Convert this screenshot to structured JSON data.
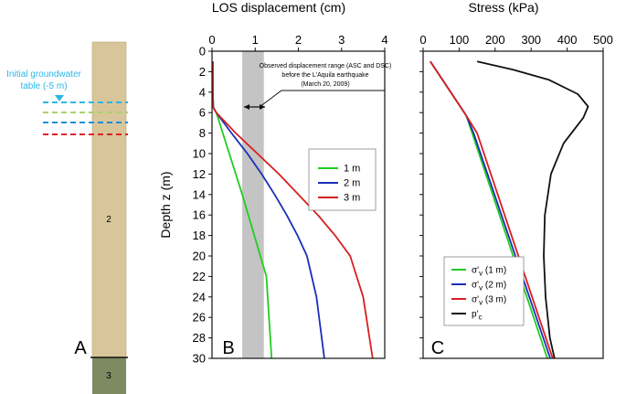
{
  "panel_a": {
    "label": "A",
    "groundwater_label_line1": "Initial groundwater",
    "groundwater_label_line2": "table (-5 m)",
    "layer_2_label": "2",
    "layer_3_label": "3",
    "line_colors": [
      "#2bb6e6",
      "#a8d26a",
      "#1a8fd8",
      "#e0202a"
    ],
    "column_color": "#d8c59a",
    "layer3_color": "#7d8a62"
  },
  "annotation": {
    "line1": "Observed displacement range (ASC and DSC)",
    "line2": "before the L'Aquila earthquake",
    "line3": "(March 20, 2009)"
  },
  "chart_data": [
    {
      "type": "line",
      "panel_label": "B",
      "title": "LOS displacement (cm)",
      "xlabel": "LOS displacement (cm)",
      "ylabel": "Depth z (m)",
      "xlim": [
        0,
        4
      ],
      "ylim": [
        30,
        0
      ],
      "x_ticks": [
        0,
        1,
        2,
        3,
        4
      ],
      "y_ticks": [
        0,
        2,
        4,
        6,
        8,
        10,
        12,
        14,
        16,
        18,
        20,
        22,
        24,
        26,
        28,
        30
      ],
      "shaded_range": [
        0.7,
        1.2
      ],
      "legend_position": "right",
      "series": [
        {
          "name": "1 m",
          "color": "#22cc22",
          "x": [
            0.02,
            0.02,
            0.03,
            0.1,
            0.25,
            0.4,
            0.55,
            0.7,
            0.84,
            0.98,
            1.12,
            1.26,
            1.38
          ],
          "y": [
            1,
            4,
            5.5,
            6,
            8,
            10,
            12,
            14,
            16,
            18,
            20,
            22,
            30
          ]
        },
        {
          "name": "2 m",
          "color": "#1a2fb8",
          "x": [
            0.02,
            0.02,
            0.03,
            0.1,
            0.45,
            0.82,
            1.15,
            1.45,
            1.73,
            1.98,
            2.2,
            2.42,
            2.6
          ],
          "y": [
            1,
            4,
            5.5,
            6,
            8,
            10,
            12,
            14,
            16,
            18,
            20,
            24,
            30
          ]
        },
        {
          "name": "3 m",
          "color": "#d81e1e",
          "x": [
            0.02,
            0.02,
            0.03,
            0.1,
            0.55,
            1.05,
            1.55,
            2.0,
            2.45,
            2.85,
            3.2,
            3.5,
            3.72
          ],
          "y": [
            1,
            4,
            5.5,
            6,
            8,
            10,
            12,
            14,
            16,
            18,
            20,
            24,
            30
          ]
        }
      ]
    },
    {
      "type": "line",
      "panel_label": "C",
      "title": "Stress (kPa)",
      "xlabel": "Stress (kPa)",
      "ylabel": "",
      "xlim": [
        0,
        500
      ],
      "ylim": [
        30,
        0
      ],
      "x_ticks": [
        0,
        100,
        200,
        300,
        400,
        500
      ],
      "y_ticks": [
        0,
        2,
        4,
        6,
        8,
        10,
        12,
        14,
        16,
        18,
        20,
        22,
        24,
        26,
        28,
        30
      ],
      "legend_position": "bottom-left",
      "series": [
        {
          "name": "σ'",
          "subscript": "v",
          "suffix": " (1 m)",
          "color": "#22cc22",
          "x": [
            20,
            120,
            345
          ],
          "y": [
            1,
            6.3,
            30
          ]
        },
        {
          "name": "σ'",
          "subscript": "v",
          "suffix": " (2 m)",
          "color": "#1a2fb8",
          "x": [
            20,
            120,
            140,
            353
          ],
          "y": [
            1,
            6.3,
            8,
            30
          ]
        },
        {
          "name": "σ'",
          "subscript": "v",
          "suffix": " (3 m)",
          "color": "#d81e1e",
          "x": [
            20,
            120,
            150,
            360
          ],
          "y": [
            1,
            6.3,
            8,
            30
          ]
        },
        {
          "name": "p'",
          "subscript": "c",
          "suffix": "",
          "color": "#111111",
          "x": [
            150,
            250,
            350,
            430,
            458,
            445,
            390,
            355,
            338,
            335,
            340,
            352,
            365
          ],
          "y": [
            1,
            1.8,
            2.8,
            4.2,
            5.4,
            6.5,
            9,
            12,
            16,
            20,
            24,
            28,
            30
          ]
        }
      ]
    }
  ]
}
